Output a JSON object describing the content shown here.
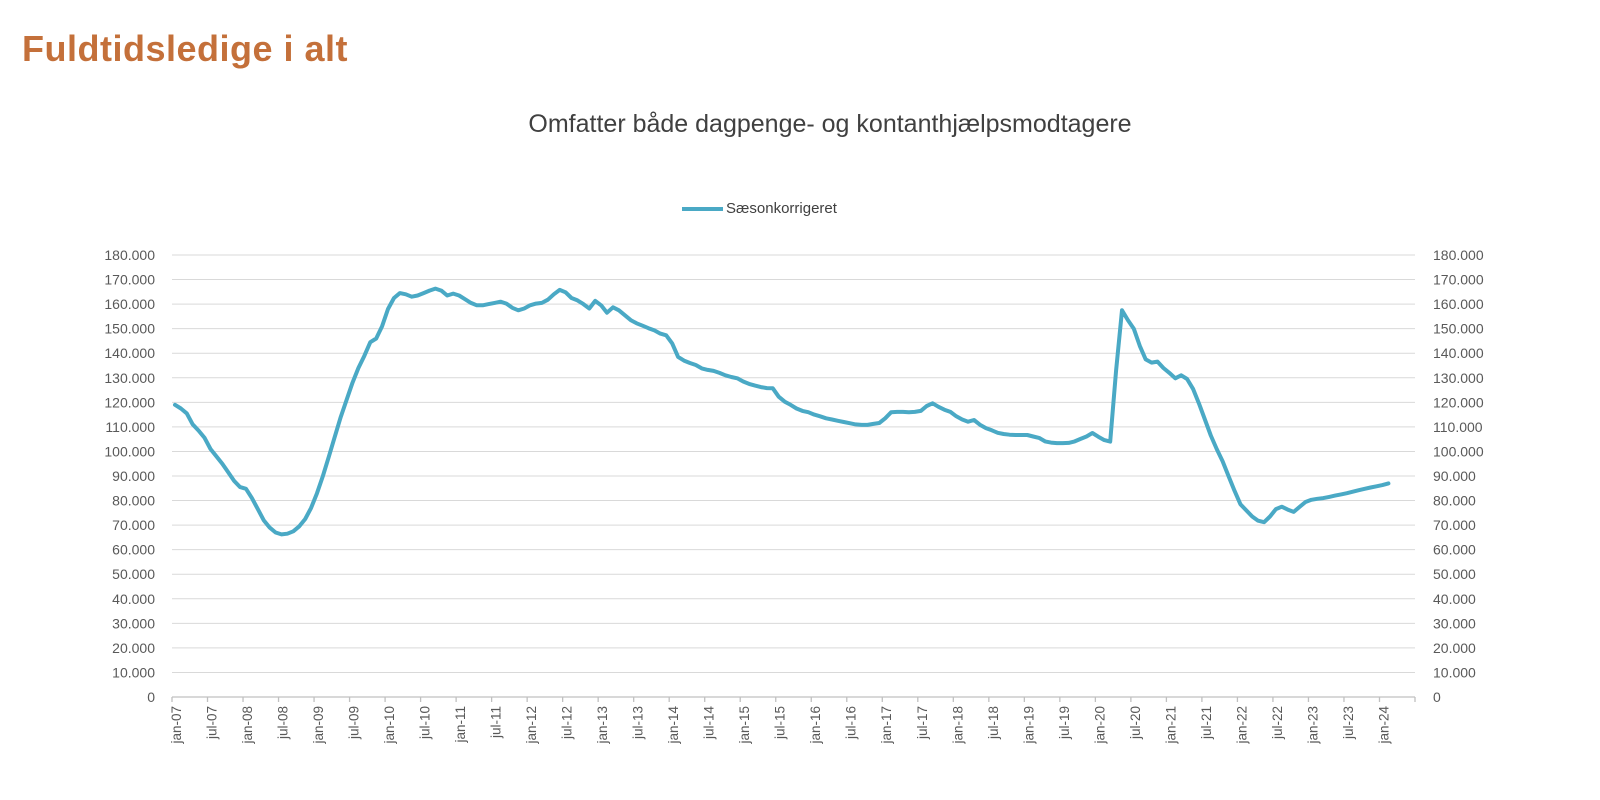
{
  "page": {
    "title": "Fuldtidsledige i alt"
  },
  "chart": {
    "subtitle": "Omfatter både dagpenge- og kontanthjælpsmodtagere",
    "legend": {
      "label": "Sæsonkorrigeret"
    }
  },
  "chart_data": {
    "type": "line",
    "title": "Omfatter både dagpenge- og kontanthjælpsmodtagere",
    "x_frequency": "monthly",
    "x_start": "jan-07",
    "x_end": "feb-24",
    "x_tick_every_months": 6,
    "x_tick_labels": [
      "jan-07",
      "jul-07",
      "jan-08",
      "jul-08",
      "jan-09",
      "jul-09",
      "jan-10",
      "jul-10",
      "jan-11",
      "jul-11",
      "jan-12",
      "jul-12",
      "jan-13",
      "jul-13",
      "jan-14",
      "jul-14",
      "jan-15",
      "jul-15",
      "jan-16",
      "jul-16",
      "jan-17",
      "jul-17",
      "jan-18",
      "jul-18",
      "jan-19",
      "jul-19",
      "jan-20",
      "jul-20",
      "jan-21",
      "jul-21",
      "jan-22",
      "jul-22",
      "jan-23",
      "jul-23",
      "jan-24"
    ],
    "ylim": [
      0,
      180000
    ],
    "y_tick_step": 10000,
    "y_axis_sides": "both",
    "y_label_format": "thousands-dot",
    "grid": "horizontal",
    "legend_position": "top-center",
    "series": [
      {
        "name": "Sæsonkorrigeret",
        "values": [
          119000,
          117500,
          115500,
          111000,
          108500,
          105500,
          101000,
          98000,
          95000,
          91500,
          88000,
          85500,
          84800,
          81000,
          76500,
          72000,
          69000,
          67000,
          66200,
          66500,
          67500,
          69500,
          72500,
          77000,
          83000,
          90000,
          98000,
          106000,
          114000,
          121000,
          128000,
          134000,
          139000,
          144500,
          146000,
          151000,
          158000,
          162500,
          164500,
          164000,
          163000,
          163500,
          164500,
          165500,
          166300,
          165500,
          163500,
          164300,
          163500,
          162000,
          160500,
          159500,
          159500,
          160000,
          160500,
          161000,
          160200,
          158500,
          157500,
          158200,
          159500,
          160200,
          160500,
          161800,
          164000,
          165800,
          164800,
          162500,
          161500,
          160000,
          158200,
          161300,
          159500,
          156500,
          158700,
          157500,
          155500,
          153500,
          152200,
          151200,
          150200,
          149300,
          148000,
          147300,
          144000,
          138500,
          137000,
          136000,
          135200,
          133800,
          133200,
          132800,
          132000,
          131000,
          130300,
          129800,
          128500,
          127500,
          126800,
          126200,
          125800,
          125700,
          122300,
          120300,
          119000,
          117500,
          116500,
          116000,
          115000,
          114300,
          113500,
          113000,
          112500,
          112000,
          111500,
          111000,
          110800,
          110800,
          111200,
          111600,
          113500,
          116000,
          116100,
          116100,
          116000,
          116100,
          116500,
          118500,
          119600,
          118200,
          117000,
          116100,
          114300,
          113000,
          112100,
          112800,
          110900,
          109500,
          108600,
          107600,
          107100,
          106800,
          106700,
          106700,
          106700,
          106100,
          105500,
          104100,
          103600,
          103400,
          103400,
          103500,
          104100,
          105100,
          106100,
          107500,
          106000,
          104600,
          104000,
          133000,
          157500,
          153500,
          150000,
          143000,
          137500,
          136200,
          136600,
          134000,
          132000,
          129800,
          131000,
          129500,
          125500,
          119500,
          113000,
          106500,
          101000,
          96000,
          90000,
          84000,
          78500,
          76000,
          73500,
          71800,
          71200,
          73500,
          76500,
          77500,
          76300,
          75400,
          77400,
          79400,
          80300,
          80700,
          81000,
          81500,
          82000,
          82500,
          83000,
          83600,
          84200,
          84800,
          85300,
          85800,
          86300,
          87000
        ]
      }
    ],
    "colors": {
      "title": "#c4703a",
      "subtitle": "#404040",
      "axis_text": "#595959",
      "gridline": "#d9d9d9",
      "axis_line": "#c0c0c0",
      "line": "#4aa9c5"
    }
  }
}
